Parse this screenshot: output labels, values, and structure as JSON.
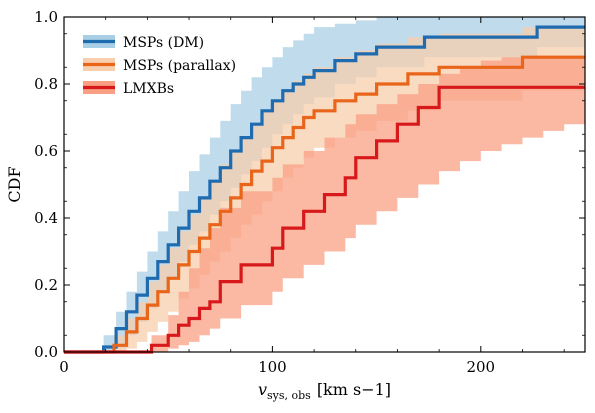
{
  "chart_data": {
    "type": "line",
    "step": true,
    "xlabel_main": "v",
    "xlabel_sub": "sys, obs",
    "xlabel_units": "[km s−1]",
    "ylabel": "CDF",
    "xlim": [
      0,
      250
    ],
    "ylim": [
      0,
      1.0
    ],
    "xticks": [
      0,
      100,
      200
    ],
    "xtick_labels": [
      "0",
      "100",
      "200"
    ],
    "yticks": [
      0.0,
      0.2,
      0.4,
      0.6,
      0.8,
      1.0
    ],
    "ytick_labels": [
      "0.0",
      "0.2",
      "0.4",
      "0.6",
      "0.8",
      "1.0"
    ],
    "grid": false,
    "legend_position": "top-left",
    "series": [
      {
        "name": "MSPs (DM)",
        "color": "#1f6bb0",
        "band_color": "#a9cfe6",
        "x": [
          0,
          19,
          25,
          30,
          35,
          40,
          45,
          50,
          55,
          60,
          65,
          70,
          75,
          80,
          85,
          90,
          95,
          100,
          105,
          110,
          115,
          120,
          130,
          140,
          150,
          173,
          227,
          250
        ],
        "y": [
          0,
          0.015,
          0.07,
          0.12,
          0.17,
          0.22,
          0.27,
          0.32,
          0.37,
          0.42,
          0.46,
          0.51,
          0.55,
          0.6,
          0.64,
          0.68,
          0.72,
          0.75,
          0.78,
          0.8,
          0.82,
          0.84,
          0.87,
          0.89,
          0.91,
          0.94,
          0.97,
          0.97
        ],
        "lower": [
          0,
          0.0,
          0.01,
          0.05,
          0.09,
          0.13,
          0.18,
          0.22,
          0.27,
          0.32,
          0.36,
          0.41,
          0.45,
          0.49,
          0.53,
          0.57,
          0.61,
          0.65,
          0.68,
          0.71,
          0.74,
          0.76,
          0.8,
          0.82,
          0.85,
          0.88,
          0.91,
          0.91
        ],
        "upper": [
          0,
          0.05,
          0.12,
          0.18,
          0.24,
          0.3,
          0.36,
          0.42,
          0.48,
          0.54,
          0.59,
          0.64,
          0.69,
          0.74,
          0.78,
          0.82,
          0.85,
          0.88,
          0.91,
          0.93,
          0.95,
          0.97,
          0.98,
          0.99,
          1.0,
          1.0,
          1.0,
          1.0
        ]
      },
      {
        "name": "MSPs (parallax)",
        "color": "#e8651a",
        "band_color": "#f7cfae",
        "x": [
          0,
          24,
          30,
          35,
          40,
          45,
          50,
          55,
          60,
          65,
          70,
          75,
          80,
          85,
          90,
          95,
          100,
          105,
          110,
          115,
          120,
          130,
          140,
          150,
          165,
          180,
          220,
          250
        ],
        "y": [
          0,
          0.02,
          0.06,
          0.1,
          0.14,
          0.18,
          0.22,
          0.26,
          0.3,
          0.34,
          0.38,
          0.42,
          0.46,
          0.5,
          0.54,
          0.57,
          0.61,
          0.64,
          0.67,
          0.7,
          0.72,
          0.75,
          0.77,
          0.8,
          0.83,
          0.85,
          0.88,
          0.88
        ],
        "lower": [
          0,
          0.0,
          0.01,
          0.03,
          0.06,
          0.09,
          0.12,
          0.16,
          0.19,
          0.23,
          0.27,
          0.3,
          0.34,
          0.38,
          0.41,
          0.45,
          0.48,
          0.52,
          0.55,
          0.58,
          0.61,
          0.64,
          0.66,
          0.69,
          0.72,
          0.75,
          0.78,
          0.8
        ],
        "upper": [
          0,
          0.05,
          0.1,
          0.15,
          0.21,
          0.26,
          0.31,
          0.36,
          0.41,
          0.46,
          0.51,
          0.56,
          0.6,
          0.64,
          0.68,
          0.72,
          0.75,
          0.78,
          0.81,
          0.83,
          0.85,
          0.88,
          0.9,
          0.92,
          0.94,
          0.95,
          0.97,
          0.97
        ]
      },
      {
        "name": "LMXBs",
        "color": "#d7191c",
        "band_color": "#f9a084",
        "x": [
          0,
          42,
          50,
          55,
          60,
          65,
          70,
          75,
          85,
          100,
          105,
          115,
          125,
          135,
          140,
          150,
          160,
          170,
          180,
          190,
          200,
          210,
          220,
          230,
          240,
          250
        ],
        "y": [
          0,
          0.02,
          0.05,
          0.08,
          0.1,
          0.13,
          0.15,
          0.21,
          0.26,
          0.31,
          0.37,
          0.42,
          0.47,
          0.52,
          0.58,
          0.63,
          0.68,
          0.73,
          0.79,
          0.79,
          0.79,
          0.79,
          0.79,
          0.79,
          0.79,
          0.79
        ],
        "lower": [
          0,
          0.0,
          0.01,
          0.02,
          0.03,
          0.05,
          0.07,
          0.1,
          0.14,
          0.18,
          0.22,
          0.26,
          0.3,
          0.34,
          0.38,
          0.42,
          0.46,
          0.5,
          0.54,
          0.57,
          0.6,
          0.62,
          0.64,
          0.66,
          0.68,
          0.7
        ],
        "upper": [
          0,
          0.05,
          0.11,
          0.18,
          0.25,
          0.31,
          0.37,
          0.43,
          0.48,
          0.52,
          0.56,
          0.6,
          0.64,
          0.68,
          0.71,
          0.74,
          0.77,
          0.8,
          0.83,
          0.85,
          0.87,
          0.88,
          0.88,
          0.88,
          0.88,
          0.88
        ]
      }
    ]
  }
}
